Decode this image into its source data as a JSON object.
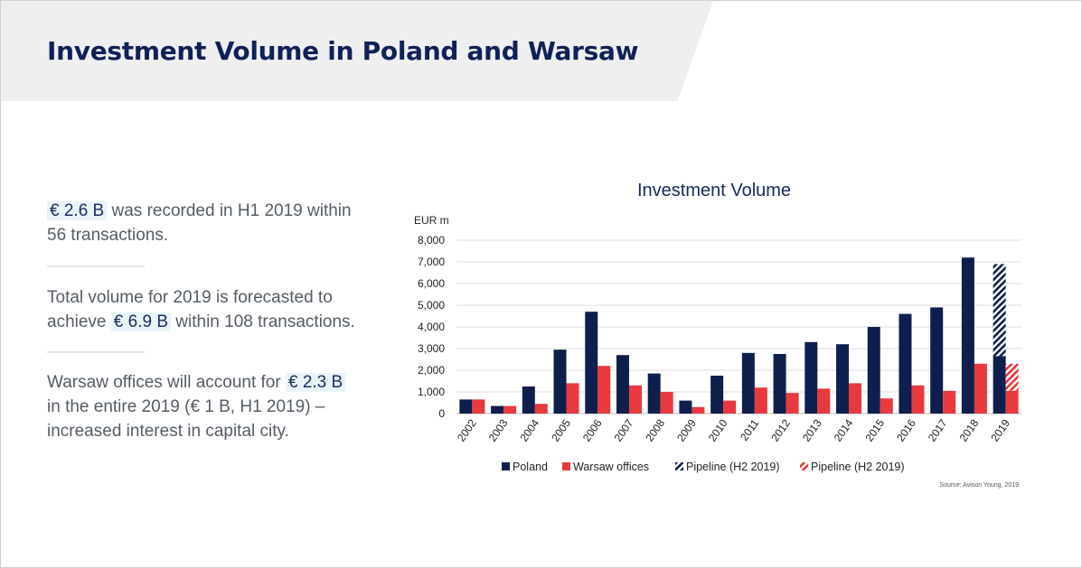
{
  "header": {
    "title": "Investment Volume in Poland and Warsaw"
  },
  "facts": [
    {
      "highlight": "€ 2.6 B",
      "line1_rest": " was recorded in H1 2019 within",
      "line2": "56 transactions."
    },
    {
      "line1": "Total volume for 2019 is forecasted to",
      "line2_pre": "achieve ",
      "highlight": "€ 6.9 B",
      "line2_post": " within 108 transactions."
    },
    {
      "line1_pre": "Warsaw offices will account for ",
      "highlight": "€ 2.3 B",
      "line2": "in the entire 2019 (€ 1 B, H1 2019) –",
      "line3": "increased interest in capital city."
    }
  ],
  "colors": {
    "poland": "#0f1f4d",
    "warsaw": "#e8393c",
    "title": "#0f2157"
  },
  "chart_data": {
    "type": "bar",
    "title": "Investment Volume",
    "ylabel": "EUR m",
    "ylim": [
      0,
      8000
    ],
    "yticks": [
      "0",
      "1,000",
      "2,000",
      "3,000",
      "4,000",
      "5,000",
      "6,000",
      "7,000",
      "8,000"
    ],
    "categories": [
      "2002",
      "2003",
      "2004",
      "2005",
      "2006",
      "2007",
      "2008",
      "2009",
      "2010",
      "2011",
      "2012",
      "2013",
      "2014",
      "2015",
      "2016",
      "2017",
      "2018",
      "2019"
    ],
    "series": [
      {
        "name": "Poland",
        "values": [
          650,
          350,
          1250,
          2950,
          4700,
          2700,
          1850,
          600,
          1750,
          2800,
          2750,
          3300,
          3200,
          4000,
          4600,
          4900,
          7200,
          2650
        ]
      },
      {
        "name": "Warsaw offices",
        "values": [
          650,
          350,
          450,
          1400,
          2200,
          1300,
          1000,
          300,
          600,
          1200,
          950,
          1150,
          1400,
          700,
          1300,
          1050,
          2300,
          1050
        ]
      },
      {
        "name": "Pipeline (H2 2019)",
        "stacked_on": "Poland",
        "values": [
          0,
          0,
          0,
          0,
          0,
          0,
          0,
          0,
          0,
          0,
          0,
          0,
          0,
          0,
          0,
          0,
          0,
          4250
        ]
      },
      {
        "name": "Pipeline (H2 2019)",
        "stacked_on": "Warsaw offices",
        "values": [
          0,
          0,
          0,
          0,
          0,
          0,
          0,
          0,
          0,
          0,
          0,
          0,
          0,
          0,
          0,
          0,
          0,
          1250
        ]
      }
    ],
    "grid": true,
    "legend_position": "bottom",
    "source": "Source: Avison Young, 2019"
  }
}
